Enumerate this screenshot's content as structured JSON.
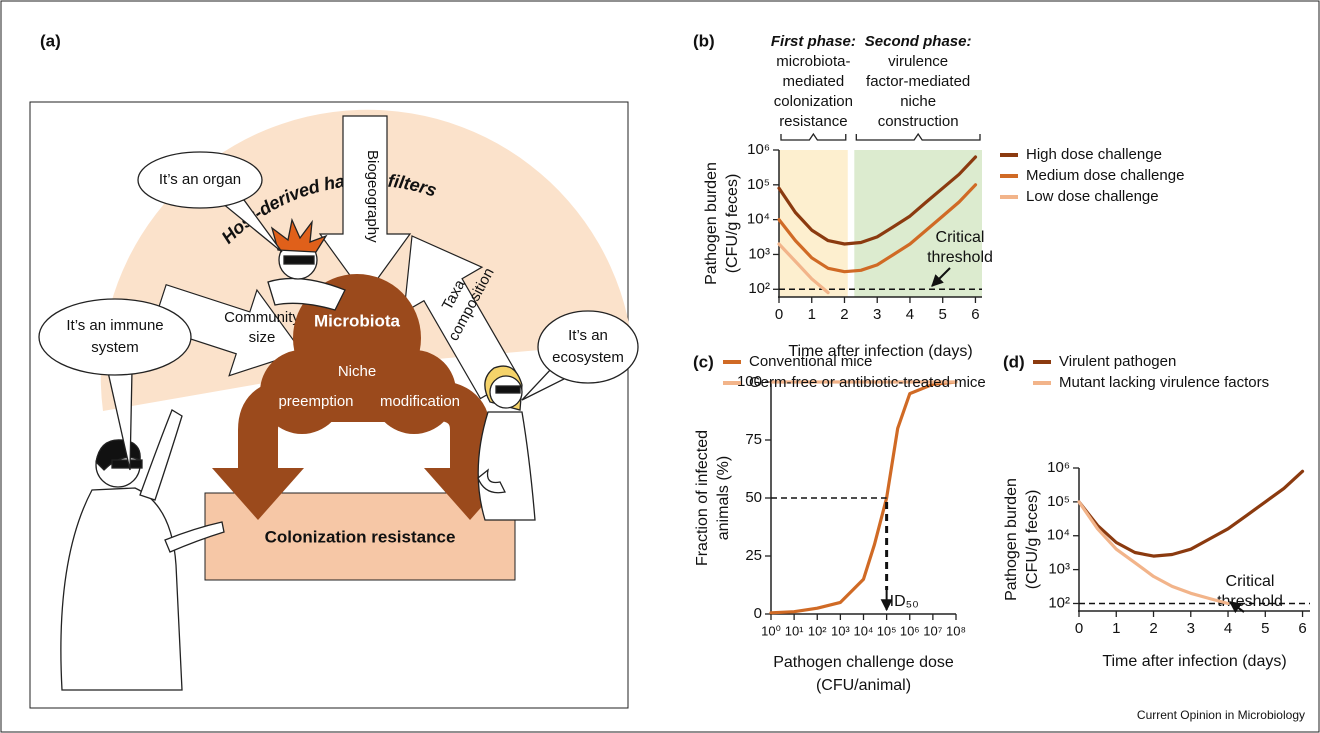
{
  "diagram": {
    "panel_label": "(a)",
    "title": "Host-derived habitat filters",
    "filter_top": "Biogeography",
    "filter_left": [
      "Community",
      "size"
    ],
    "filter_right": [
      "Taxa",
      "composition"
    ],
    "center": "Microbiota",
    "mechanism": "Niche",
    "mechanism_left": "preemption",
    "mechanism_right": "modification",
    "outcome": "Colonization resistance",
    "bubble_organ": [
      "It’s an organ"
    ],
    "bubble_immune": [
      "It’s an immune",
      "system"
    ],
    "bubble_ecosystem": [
      "It’s an",
      "ecosystem"
    ]
  },
  "chart_data": [
    {
      "type": "line",
      "panel_label": "(b)",
      "xlabel": [
        "Time after infection (days)"
      ],
      "ylabel": [
        "Pathogen burden",
        "(CFU/g feces)"
      ],
      "xscale": "linear",
      "yscale": "log",
      "xlim": [
        0,
        6.2
      ],
      "xticks": [
        0,
        1,
        2,
        3,
        4,
        5,
        6
      ],
      "ylim": [
        60,
        1000000
      ],
      "yticks": [
        {
          "value": 100,
          "label": "10²"
        },
        {
          "value": 1000,
          "label": "10³"
        },
        {
          "value": 10000,
          "label": "10⁴"
        },
        {
          "value": 100000,
          "label": "10⁵"
        },
        {
          "value": 1000000,
          "label": "10⁶"
        }
      ],
      "x": [
        0,
        0.5,
        1,
        1.5,
        2,
        2.5,
        3,
        3.5,
        4,
        4.5,
        5,
        5.5,
        6
      ],
      "series": [
        {
          "name": "High dose challenge",
          "color": "#8b3a0f",
          "values": [
            80000,
            16000,
            5000,
            2500,
            2000,
            2200,
            3200,
            6300,
            12600,
            32000,
            80000,
            200000,
            630000
          ]
        },
        {
          "name": "Medium dose challenge",
          "color": "#d06a25",
          "values": [
            10000,
            2500,
            800,
            400,
            320,
            350,
            500,
            1000,
            2000,
            5000,
            12600,
            32000,
            100000
          ]
        },
        {
          "name": "Low dose challenge",
          "color": "#f2b48a",
          "values": [
            2000,
            630,
            200,
            80,
            null,
            null,
            null,
            null,
            null,
            null,
            null,
            null,
            null
          ]
        }
      ],
      "threshold": {
        "value": 100,
        "label": [
          "Critical",
          "threshold"
        ]
      },
      "phases": [
        {
          "title": "First phase:",
          "lines": [
            "microbiota-",
            "mediated",
            "colonization",
            "resistance"
          ],
          "xlim": [
            0,
            2.1
          ],
          "color": "#fdefcf"
        },
        {
          "title": "Second phase:",
          "lines": [
            "virulence",
            "factor-mediated",
            "niche",
            "construction"
          ],
          "xlim": [
            2.3,
            6.2
          ],
          "color": "#dcebcf"
        }
      ]
    },
    {
      "type": "line",
      "panel_label": "(c)",
      "xlabel": [
        "Pathogen challenge dose",
        "(CFU/animal)"
      ],
      "ylabel": [
        "Fraction of infected",
        "animals (%)"
      ],
      "xscale": "log",
      "yscale": "linear",
      "xlim": [
        1,
        100000000
      ],
      "xticks": [
        {
          "value": 1,
          "label": "10⁰"
        },
        {
          "value": 10,
          "label": "10¹"
        },
        {
          "value": 100,
          "label": "10²"
        },
        {
          "value": 1000,
          "label": "10³"
        },
        {
          "value": 10000,
          "label": "10⁴"
        },
        {
          "value": 100000,
          "label": "10⁵"
        },
        {
          "value": 1000000,
          "label": "10⁶"
        },
        {
          "value": 10000000,
          "label": "10⁷"
        },
        {
          "value": 100000000,
          "label": "10⁸"
        }
      ],
      "ylim": [
        0,
        100
      ],
      "yticks": [
        0,
        25,
        50,
        75,
        100
      ],
      "x": [
        1,
        10,
        100,
        1000,
        10000,
        30000,
        100000,
        300000,
        1000000,
        10000000,
        100000000
      ],
      "series": [
        {
          "name": "Conventional mice",
          "color": "#d06a25",
          "values": [
            0.5,
            1,
            2.5,
            5,
            15,
            30,
            50,
            80,
            95,
            99,
            100
          ]
        },
        {
          "name": "Germ-free or antibiotic-treated mice",
          "color": "#f2b48a",
          "values": [
            100,
            100,
            100,
            100,
            100,
            100,
            100,
            100,
            100,
            100,
            100
          ]
        }
      ],
      "annotation": {
        "x": 100000,
        "y": 50,
        "label": "ID₅₀"
      }
    },
    {
      "type": "line",
      "panel_label": "(d)",
      "xlabel": [
        "Time after infection (days)"
      ],
      "ylabel": [
        "Pathogen burden",
        "(CFU/g feces)"
      ],
      "xscale": "linear",
      "yscale": "log",
      "xlim": [
        0,
        6.2
      ],
      "xticks": [
        0,
        1,
        2,
        3,
        4,
        5,
        6
      ],
      "ylim": [
        60,
        1000000
      ],
      "yticks": [
        {
          "value": 100,
          "label": "10²"
        },
        {
          "value": 1000,
          "label": "10³"
        },
        {
          "value": 10000,
          "label": "10⁴"
        },
        {
          "value": 100000,
          "label": "10⁵"
        },
        {
          "value": 1000000,
          "label": "10⁶"
        }
      ],
      "x": [
        0,
        0.5,
        1,
        1.5,
        2,
        2.5,
        3,
        3.5,
        4,
        4.5,
        5,
        5.5,
        6
      ],
      "series": [
        {
          "name": "Virulent pathogen",
          "color": "#8b3a0f",
          "values": [
            100000,
            20000,
            6300,
            3200,
            2500,
            2800,
            4000,
            8000,
            16000,
            40000,
            100000,
            250000,
            800000
          ]
        },
        {
          "name": "Mutant lacking virulence factors",
          "color": "#f2b48a",
          "values": [
            100000,
            16000,
            4000,
            1600,
            630,
            320,
            200,
            140,
            100,
            null,
            null,
            null,
            null
          ]
        }
      ],
      "threshold": {
        "value": 100,
        "label": [
          "Critical",
          "threshold"
        ]
      }
    }
  ],
  "footer": "Current Opinion in Microbiology"
}
